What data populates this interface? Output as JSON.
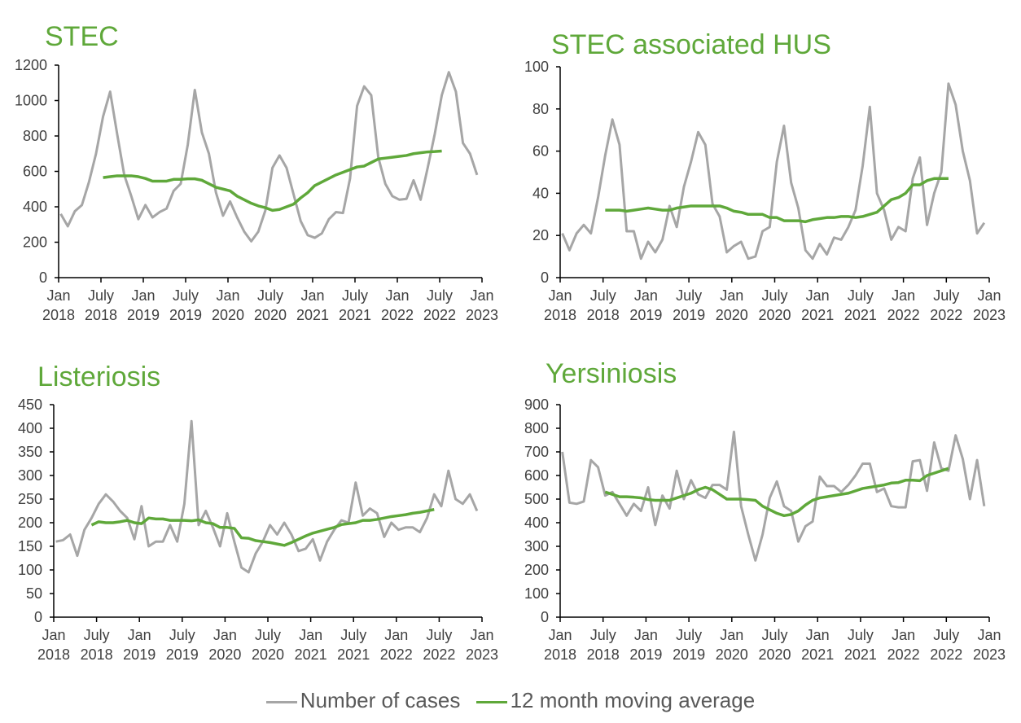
{
  "chart_data": [
    {
      "type": "line",
      "title": "STEC",
      "ylim": [
        0,
        1200
      ],
      "yticks": [
        "0",
        "200",
        "400",
        "600",
        "800",
        "1000",
        "1200"
      ],
      "xticks": [
        [
          "Jan",
          "2018"
        ],
        [
          "July",
          "2018"
        ],
        [
          "Jan",
          "2019"
        ],
        [
          "July",
          "2019"
        ],
        [
          "Jan",
          "2020"
        ],
        [
          "July",
          "2020"
        ],
        [
          "Jan",
          "2021"
        ],
        [
          "July",
          "2021"
        ],
        [
          "Jan",
          "2022"
        ],
        [
          "July",
          "2022"
        ],
        [
          "Jan",
          "2023"
        ]
      ],
      "series": [
        {
          "name": "Number of cases",
          "start_month": 0,
          "values": [
            360,
            290,
            375,
            410,
            540,
            700,
            910,
            1050,
            810,
            580,
            460,
            330,
            410,
            340,
            370,
            390,
            490,
            530,
            750,
            1060,
            820,
            700,
            480,
            350,
            430,
            340,
            260,
            205,
            260,
            380,
            620,
            690,
            620,
            470,
            320,
            240,
            225,
            250,
            330,
            370,
            365,
            560,
            970,
            1080,
            1030,
            680,
            530,
            460,
            440,
            445,
            550,
            440,
            620,
            810,
            1030,
            1160,
            1050,
            760,
            700,
            580
          ]
        },
        {
          "name": "12 month moving average",
          "start_month": 6,
          "values": [
            565,
            570,
            575,
            575,
            575,
            570,
            560,
            545,
            545,
            545,
            555,
            555,
            558,
            558,
            550,
            530,
            510,
            500,
            490,
            460,
            440,
            420,
            405,
            395,
            380,
            385,
            400,
            415,
            450,
            480,
            520,
            540,
            560,
            580,
            595,
            610,
            625,
            630,
            650,
            670,
            675,
            680,
            685,
            690,
            700,
            705,
            710,
            712,
            715
          ]
        }
      ]
    },
    {
      "type": "line",
      "title": "STEC associated HUS",
      "ylim": [
        0,
        100
      ],
      "yticks": [
        "0",
        "20",
        "40",
        "60",
        "80",
        "100"
      ],
      "xticks": [
        [
          "Jan",
          "2018"
        ],
        [
          "July",
          "2018"
        ],
        [
          "Jan",
          "2019"
        ],
        [
          "July",
          "2019"
        ],
        [
          "Jan",
          "2020"
        ],
        [
          "July",
          "2020"
        ],
        [
          "Jan",
          "2021"
        ],
        [
          "July",
          "2021"
        ],
        [
          "Jan",
          "2022"
        ],
        [
          "July",
          "2022"
        ],
        [
          "Jan",
          "2023"
        ]
      ],
      "series": [
        {
          "name": "Number of cases",
          "start_month": 0,
          "values": [
            21,
            13,
            21,
            25,
            21,
            38,
            58,
            75,
            63,
            22,
            22,
            9,
            17,
            12,
            18,
            34,
            24,
            43,
            55,
            69,
            63,
            35,
            29,
            12,
            15,
            17,
            9,
            10,
            22,
            24,
            55,
            72,
            45,
            33,
            13,
            9,
            16,
            11,
            19,
            18,
            24,
            32,
            53,
            81,
            40,
            32,
            18,
            24,
            22,
            47,
            57,
            25,
            40,
            50,
            92,
            82,
            60,
            46,
            21,
            26
          ]
        },
        {
          "name": "12 month moving average",
          "start_month": 6,
          "values": [
            32,
            32,
            32,
            31.5,
            32,
            32.5,
            33,
            32.5,
            32,
            32,
            33,
            33.5,
            34,
            34,
            34,
            34,
            34,
            33,
            31.5,
            31,
            30,
            30,
            30,
            28.5,
            28.5,
            27,
            27,
            27,
            26.5,
            27.5,
            28,
            28.5,
            28.5,
            29,
            29,
            28.5,
            29,
            30,
            31,
            34,
            37,
            38,
            40,
            44,
            44,
            46,
            47,
            47,
            47
          ]
        }
      ]
    },
    {
      "type": "line",
      "title": "Listeriosis",
      "ylim": [
        0,
        450
      ],
      "yticks": [
        "0",
        "50",
        "100",
        "150",
        "200",
        "250",
        "300",
        "350",
        "400",
        "450"
      ],
      "xticks": [
        [
          "Jan",
          "2018"
        ],
        [
          "July",
          "2018"
        ],
        [
          "Jan",
          "2019"
        ],
        [
          "July",
          "2019"
        ],
        [
          "Jan",
          "2020"
        ],
        [
          "July",
          "2020"
        ],
        [
          "Jan",
          "2021"
        ],
        [
          "July",
          "2021"
        ],
        [
          "Jan",
          "2022"
        ],
        [
          "July",
          "2022"
        ],
        [
          "Jan",
          "2023"
        ]
      ],
      "series": [
        {
          "name": "Number of cases",
          "start_month": 0,
          "values": [
            160,
            163,
            175,
            130,
            185,
            210,
            240,
            260,
            245,
            225,
            210,
            165,
            235,
            150,
            160,
            160,
            195,
            160,
            240,
            415,
            195,
            225,
            190,
            150,
            220,
            160,
            105,
            95,
            135,
            160,
            195,
            175,
            200,
            175,
            140,
            145,
            165,
            120,
            160,
            185,
            205,
            200,
            285,
            215,
            230,
            220,
            170,
            200,
            185,
            190,
            190,
            180,
            210,
            260,
            235,
            310,
            250,
            240,
            260,
            225
          ]
        },
        {
          "name": "12 month moving average",
          "start_month": 5,
          "values": [
            195,
            202,
            200,
            200,
            202,
            205,
            200,
            198,
            210,
            208,
            208,
            205,
            205,
            205,
            204,
            206,
            200,
            198,
            190,
            190,
            188,
            168,
            167,
            162,
            160,
            158,
            155,
            152,
            158,
            165,
            172,
            178,
            182,
            186,
            190,
            196,
            198,
            200,
            205,
            205,
            207,
            210,
            213,
            215,
            217,
            220,
            222,
            225,
            228
          ]
        }
      ]
    },
    {
      "type": "line",
      "title": "Yersiniosis",
      "ylim": [
        0,
        900
      ],
      "yticks": [
        "0",
        "100",
        "200",
        "300",
        "400",
        "500",
        "600",
        "700",
        "800",
        "900"
      ],
      "xticks": [
        [
          "Jan",
          "2018"
        ],
        [
          "July",
          "2018"
        ],
        [
          "Jan",
          "2019"
        ],
        [
          "July",
          "2019"
        ],
        [
          "Jan",
          "2020"
        ],
        [
          "July",
          "2020"
        ],
        [
          "Jan",
          "2021"
        ],
        [
          "July",
          "2021"
        ],
        [
          "Jan",
          "2022"
        ],
        [
          "July",
          "2022"
        ],
        [
          "Jan",
          "2023"
        ]
      ],
      "series": [
        {
          "name": "Number of cases",
          "start_month": 0,
          "values": [
            700,
            485,
            480,
            490,
            665,
            635,
            515,
            530,
            480,
            430,
            480,
            450,
            550,
            390,
            515,
            460,
            620,
            500,
            580,
            520,
            505,
            560,
            560,
            540,
            785,
            470,
            350,
            240,
            350,
            505,
            575,
            470,
            450,
            320,
            385,
            405,
            595,
            555,
            555,
            530,
            560,
            600,
            650,
            650,
            530,
            545,
            470,
            465,
            465,
            660,
            665,
            535,
            740,
            630,
            620,
            770,
            670,
            500,
            665,
            470
          ]
        },
        {
          "name": "12 month moving average",
          "start_month": 6,
          "values": [
            530,
            520,
            510,
            510,
            508,
            505,
            498,
            495,
            495,
            495,
            505,
            515,
            525,
            540,
            550,
            540,
            520,
            500,
            500,
            500,
            498,
            495,
            470,
            455,
            440,
            430,
            435,
            450,
            475,
            495,
            505,
            510,
            515,
            520,
            525,
            535,
            545,
            550,
            555,
            560,
            568,
            570,
            580,
            580,
            578,
            600,
            610,
            620,
            630
          ]
        }
      ]
    }
  ],
  "legend": {
    "cases_label": "Number of cases",
    "ma_label": "12 month moving average",
    "cases_color": "#a6a6a6",
    "ma_color": "#5fa83a"
  }
}
